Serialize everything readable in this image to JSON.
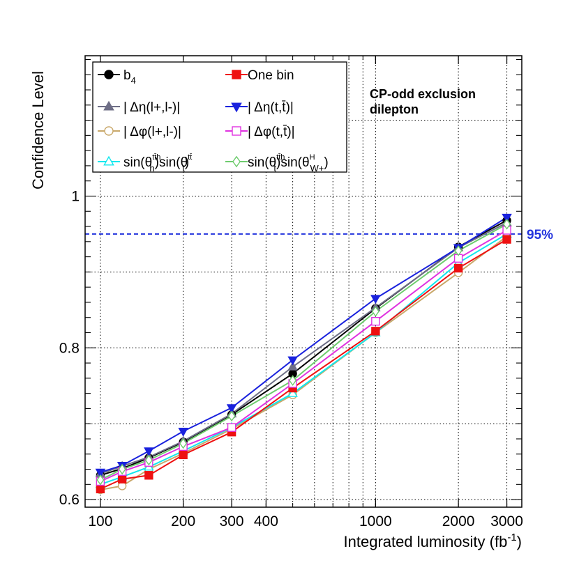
{
  "chart_data": {
    "type": "line",
    "xscale": "log",
    "xlim": [
      88,
      3400
    ],
    "ylim": [
      0.59,
      1.185
    ],
    "xlabel": "Integrated luminosity (fb",
    "xlabel_sup": "-1",
    "xlabel_close": ")",
    "ylabel": "Confidence Level",
    "x_ticks": [
      {
        "value": 100,
        "label": "100"
      },
      {
        "value": 200,
        "label": "200"
      },
      {
        "value": 300,
        "label": "300"
      },
      {
        "value": 400,
        "label": "400"
      },
      {
        "value": 1000,
        "label": "1000"
      },
      {
        "value": 2000,
        "label": "2000"
      },
      {
        "value": 3000,
        "label": "3000"
      }
    ],
    "x_minor_grid": [
      500,
      600,
      700,
      800,
      900
    ],
    "y_ticks": [
      {
        "value": 0.6,
        "label": "0.6"
      },
      {
        "value": 0.8,
        "label": "0.8"
      },
      {
        "value": 1.0,
        "label": "1"
      }
    ],
    "y_minor_grid": [
      0.7,
      0.9,
      1.1
    ],
    "annotations": {
      "line1": "CP-odd exclusion",
      "line2": "dilepton"
    },
    "reference_line": {
      "value": 0.95,
      "label": "95%",
      "color": "#2233dd"
    },
    "x": [
      100,
      120,
      150,
      200,
      300,
      500,
      1000,
      2000,
      3000
    ],
    "series": [
      {
        "key": "b4",
        "color": "#000000",
        "marker": "circle",
        "fill": true,
        "legend": {
          "main": "b",
          "sub": "4"
        },
        "values": [
          0.632,
          0.641,
          0.655,
          0.676,
          0.712,
          0.766,
          0.852,
          0.933,
          0.968
        ]
      },
      {
        "key": "deta-ll",
        "color": "#6e6e86",
        "marker": "triangle-up",
        "fill": true,
        "legend": {
          "main": "| Δη(l+,l-)|"
        },
        "values": [
          0.634,
          0.644,
          0.656,
          0.677,
          0.713,
          0.775,
          0.853,
          0.932,
          0.965
        ]
      },
      {
        "key": "dphi-ll",
        "color": "#c9a86a",
        "marker": "circle",
        "fill": false,
        "legend": {
          "main": "| Δφ(l+,l-)|"
        },
        "values": [
          0.613,
          0.618,
          0.64,
          0.661,
          0.693,
          0.738,
          0.82,
          0.899,
          0.947
        ]
      },
      {
        "key": "sin-h-t",
        "color": "#11e8ee",
        "marker": "triangle-up",
        "fill": false,
        "legend": {
          "main": "sin(θ",
          "sup1": "tt̄h",
          "sub1": "h",
          "mid": ")sin(θ",
          "sup2": "tt̄",
          "sub2": "t",
          "end": ")"
        },
        "values": [
          0.62,
          0.63,
          0.643,
          0.664,
          0.695,
          0.74,
          0.82,
          0.912,
          0.95
        ]
      },
      {
        "key": "one-bin",
        "color": "#ee1111",
        "marker": "square",
        "fill": true,
        "legend": {
          "main": "One bin"
        },
        "values": [
          0.614,
          0.627,
          0.632,
          0.659,
          0.689,
          0.747,
          0.822,
          0.905,
          0.943
        ]
      },
      {
        "key": "deta-tt",
        "color": "#1a22dd",
        "marker": "triangle-down",
        "fill": true,
        "legend": {
          "main": "| Δη(t,t̄)|"
        },
        "values": [
          0.636,
          0.645,
          0.664,
          0.69,
          0.721,
          0.784,
          0.865,
          0.932,
          0.972
        ]
      },
      {
        "key": "dphi-tt",
        "color": "#e032e0",
        "marker": "square",
        "fill": false,
        "legend": {
          "main": "| Δφ(t,t̄)|"
        },
        "values": [
          0.624,
          0.637,
          0.649,
          0.67,
          0.695,
          0.753,
          0.835,
          0.918,
          0.955
        ]
      },
      {
        "key": "sin-t-w",
        "color": "#6ecc6e",
        "marker": "diamond",
        "fill": false,
        "legend": {
          "main": "sin(θ",
          "sup1": "tt̄h",
          "sub1": "t",
          "mid": ")sin(θ",
          "sup2": "H",
          "sub2": "W+",
          "end": ")"
        },
        "values": [
          0.626,
          0.64,
          0.652,
          0.674,
          0.71,
          0.757,
          0.848,
          0.928,
          0.963
        ]
      }
    ]
  }
}
